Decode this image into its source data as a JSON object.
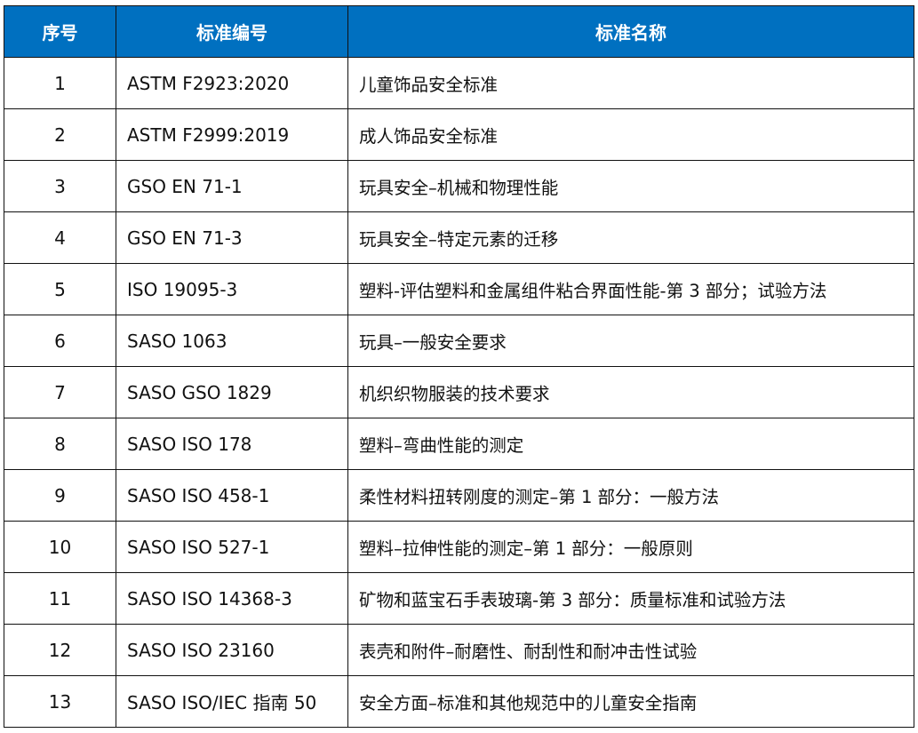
{
  "header_color": "#0070C0",
  "columns": [
    "序号",
    "标准编号",
    "标准名称"
  ],
  "rows": [
    [
      "1",
      "ASTM F2923:2020",
      "儿童饰品安全标准"
    ],
    [
      "2",
      "ASTM F2999:2019",
      "成人饰品安全标准"
    ],
    [
      "3",
      "GSO EN 71-1",
      "玩具安全–机械和物理性能"
    ],
    [
      "4",
      "GSO EN 71-3",
      "玩具安全–特定元素的迁移"
    ],
    [
      "5",
      "ISO 19095-3",
      "塑料-评估塑料和金属组件粘合界面性能-第 3 部分；试验方法"
    ],
    [
      "6",
      "SASO 1063",
      "玩具–一般安全要求"
    ],
    [
      "7",
      "SASO GSO 1829",
      "机织织物服装的技术要求"
    ],
    [
      "8",
      "SASO ISO 178",
      "塑料–弯曲性能的测定"
    ],
    [
      "9",
      "SASO ISO 458-1",
      "柔性材料扭转刚度的测定–第 1 部分：一般方法"
    ],
    [
      "10",
      "SASO ISO 527-1",
      "塑料–拉伸性能的测定–第 1 部分：一般原则"
    ],
    [
      "11",
      "SASO ISO 14368-3",
      "矿物和蓝宝石手表玻璃-第 3 部分：质量标准和试验方法"
    ],
    [
      "12",
      "SASO ISO 23160",
      "表壳和附件–耐磨性、耐刮性和耐冲击性试验"
    ],
    [
      "13",
      "SASO ISO/IEC 指南 50",
      "安全方面–标准和其他规范中的儿童安全指南"
    ]
  ]
}
